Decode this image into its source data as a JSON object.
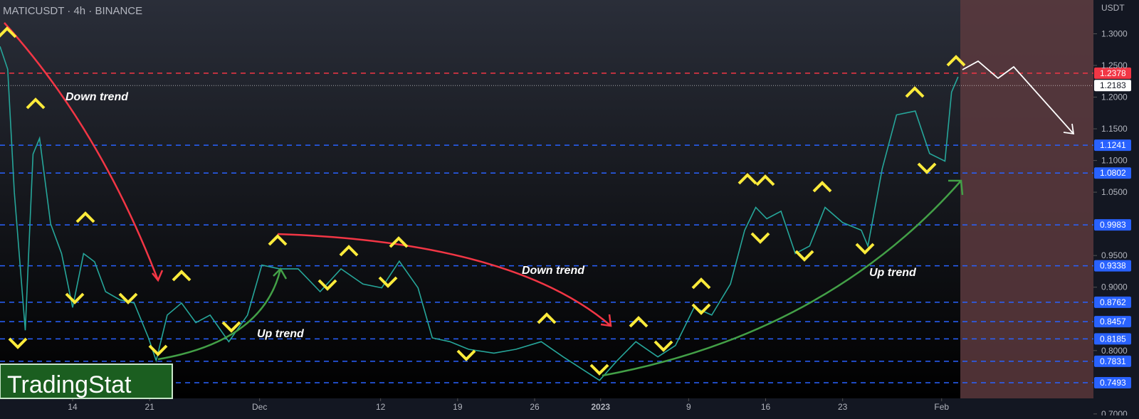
{
  "chart_data": {
    "type": "line",
    "title": "MATICUSDT · 4h · BINANCE",
    "y_axis_label": "USDT",
    "watermark": "TradingStat",
    "annotations": [
      "Down trend",
      "Down trend",
      "Up trend",
      "Up trend"
    ],
    "series": [
      {
        "name": "MATICUSDT",
        "color": "#26a69a",
        "x": [
          -6.6,
          -5.9,
          -5.3,
          -4.3,
          -3.6,
          -3.0,
          -2.0,
          -1.0,
          0,
          1.0,
          2.0,
          3.0,
          4.3,
          5.6,
          6.9,
          7.6,
          8.6,
          9.9,
          11.2,
          12.5,
          14.2,
          15.9,
          17.2,
          18.8,
          20.5,
          22.5,
          24.4,
          26.4,
          28.1,
          29.7,
          31.4,
          32.7,
          34.3,
          36.0,
          38.3,
          40.3,
          42.6,
          44.6,
          46.2,
          47.9,
          49.5,
          51.2,
          53.2,
          54.8,
          56.5,
          58.1,
          59.8,
          61.1,
          62.1,
          63.1,
          64.4,
          65.7,
          67.0,
          68.4,
          70.0,
          71.7,
          72.3,
          73.6,
          74.9,
          76.6,
          77.9,
          79.3,
          79.9,
          80.5
        ],
        "values": [
          1.28,
          1.244,
          1.05,
          0.832,
          1.11,
          1.135,
          1.0,
          0.953,
          0.868,
          0.953,
          0.94,
          0.893,
          0.88,
          0.875,
          0.82,
          0.784,
          0.856,
          0.875,
          0.844,
          0.856,
          0.814,
          0.856,
          0.935,
          0.929,
          0.929,
          0.893,
          0.929,
          0.905,
          0.899,
          0.941,
          0.899,
          0.82,
          0.814,
          0.802,
          0.796,
          0.802,
          0.814,
          0.79,
          0.772,
          0.753,
          0.784,
          0.814,
          0.79,
          0.808,
          0.868,
          0.856,
          0.905,
          0.99,
          1.026,
          1.008,
          1.02,
          0.953,
          0.965,
          1.026,
          1.002,
          0.99,
          0.965,
          1.087,
          1.172,
          1.178,
          1.111,
          1.099,
          1.208,
          1.232
        ]
      }
    ],
    "levels": [
      {
        "value": 1.2378,
        "color": "#f23645"
      },
      {
        "value": 1.2183,
        "color": "#ffffff"
      },
      {
        "value": 1.1241,
        "color": "#2962ff"
      },
      {
        "value": 1.0802,
        "color": "#2962ff"
      },
      {
        "value": 0.9983,
        "color": "#2962ff"
      },
      {
        "value": 0.9338,
        "color": "#2962ff"
      },
      {
        "value": 0.8762,
        "color": "#2962ff"
      },
      {
        "value": 0.8457,
        "color": "#2962ff"
      },
      {
        "value": 0.8185,
        "color": "#2962ff"
      },
      {
        "value": 0.7831,
        "color": "#2962ff"
      },
      {
        "value": 0.7493,
        "color": "#2962ff"
      }
    ],
    "xlim": [
      -6.6,
      92.8
    ],
    "xticks": [
      {
        "value": 0,
        "label": "14"
      },
      {
        "value": 7,
        "label": "21"
      },
      {
        "value": 17,
        "label": "Dec"
      },
      {
        "value": 28,
        "label": "12"
      },
      {
        "value": 35,
        "label": "19"
      },
      {
        "value": 42,
        "label": "26"
      },
      {
        "value": 48,
        "label": "2023"
      },
      {
        "value": 56,
        "label": "9"
      },
      {
        "value": 63,
        "label": "16"
      },
      {
        "value": 70,
        "label": "23"
      },
      {
        "value": 79,
        "label": "Feb"
      }
    ],
    "ylim": [
      0.6976,
      1.3533
    ],
    "yticks": [
      {
        "value": 1.3,
        "label": "1.3000"
      },
      {
        "value": 1.25,
        "label": "1.2500"
      },
      {
        "value": 1.2,
        "label": "1.2000"
      },
      {
        "value": 1.15,
        "label": "1.1500"
      },
      {
        "value": 1.1,
        "label": "1.1000"
      },
      {
        "value": 1.05,
        "label": "1.0500"
      },
      {
        "value": 0.95,
        "label": "0.9500"
      },
      {
        "value": 0.9,
        "label": "0.9000"
      },
      {
        "value": 0.8,
        "label": "0.8000"
      },
      {
        "value": 0.7,
        "label": "0.7000"
      }
    ]
  }
}
